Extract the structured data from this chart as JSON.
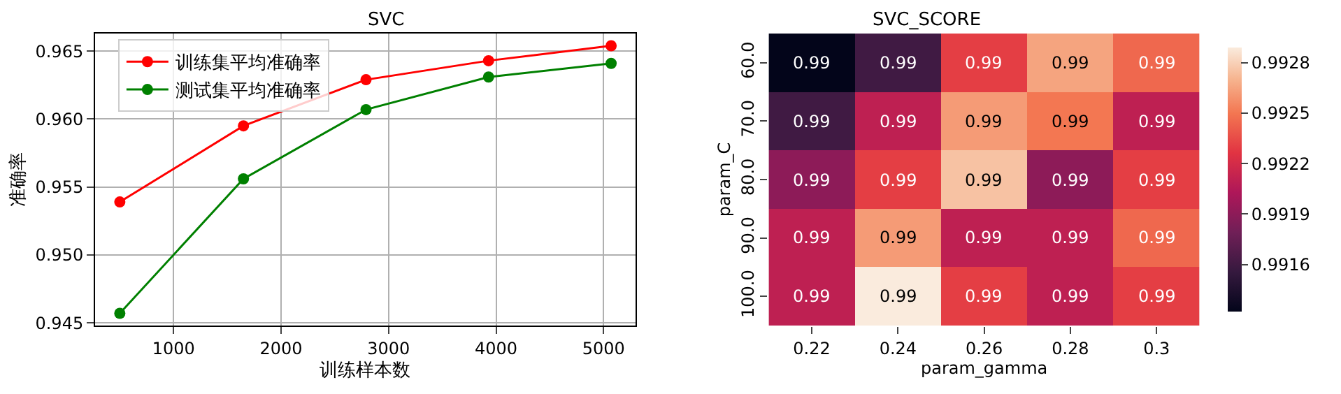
{
  "chart_data": [
    {
      "type": "line",
      "title": "SVC",
      "xlabel": "训练样本数",
      "ylabel": "准确率",
      "x": [
        500,
        1650,
        2790,
        3930,
        5070
      ],
      "series": [
        {
          "name": "训练集平均准确率",
          "color": "#ff0000",
          "values": [
            0.9539,
            0.9595,
            0.9629,
            0.9643,
            0.9654
          ]
        },
        {
          "name": "测试集平均准确率",
          "color": "#008000",
          "values": [
            0.9457,
            0.9556,
            0.9607,
            0.9631,
            0.9641
          ]
        }
      ],
      "xlim": [
        270,
        5295
      ],
      "xticks": [
        1000,
        2000,
        3000,
        4000,
        5000
      ],
      "ylim": [
        0.9448,
        0.9663
      ],
      "yticks": [
        0.945,
        {
          "value": 0.95,
          "label": "0.950"
        },
        0.955,
        {
          "value": 0.96,
          "label": "0.960"
        },
        0.965
      ],
      "grid": true,
      "legend": "top left",
      "marker": "circle",
      "line_style": "solid"
    },
    {
      "type": "heatmap",
      "title": "SVC_SCORE",
      "xlabel": "param_gamma",
      "ylabel": "param_C",
      "categories": [
        "0.22",
        "0.24",
        "0.26",
        "0.28",
        "0.3"
      ],
      "y_categories": [
        "60.0",
        "70.0",
        "80.0",
        "90.0",
        "100.0"
      ],
      "cells": [
        [
          0.99132,
          0.9916,
          0.9923,
          0.99265,
          0.99245
        ],
        [
          0.9916,
          0.9921,
          0.99262,
          0.9925,
          0.9921
        ],
        [
          0.9919,
          0.9923,
          0.99275,
          0.9919,
          0.9923
        ],
        [
          0.9921,
          0.99262,
          0.9921,
          0.9921,
          0.99245
        ],
        [
          0.9921,
          0.99289,
          0.9923,
          0.9921,
          0.9923
        ]
      ],
      "cell_labels": [
        [
          "0.99",
          "0.99",
          "0.99",
          "0.99",
          "0.99"
        ],
        [
          "0.99",
          "0.99",
          "0.99",
          "0.99",
          "0.99"
        ],
        [
          "0.99",
          "0.99",
          "0.99",
          "0.99",
          "0.99"
        ],
        [
          "0.99",
          "0.99",
          "0.99",
          "0.99",
          "0.99"
        ],
        [
          "0.99",
          "0.99",
          "0.99",
          "0.99",
          "0.99"
        ]
      ],
      "clim": [
        0.99132,
        0.99289
      ],
      "cticks": [
        0.9916,
        0.9919,
        0.9922,
        0.9925,
        0.9928
      ]
    }
  ]
}
